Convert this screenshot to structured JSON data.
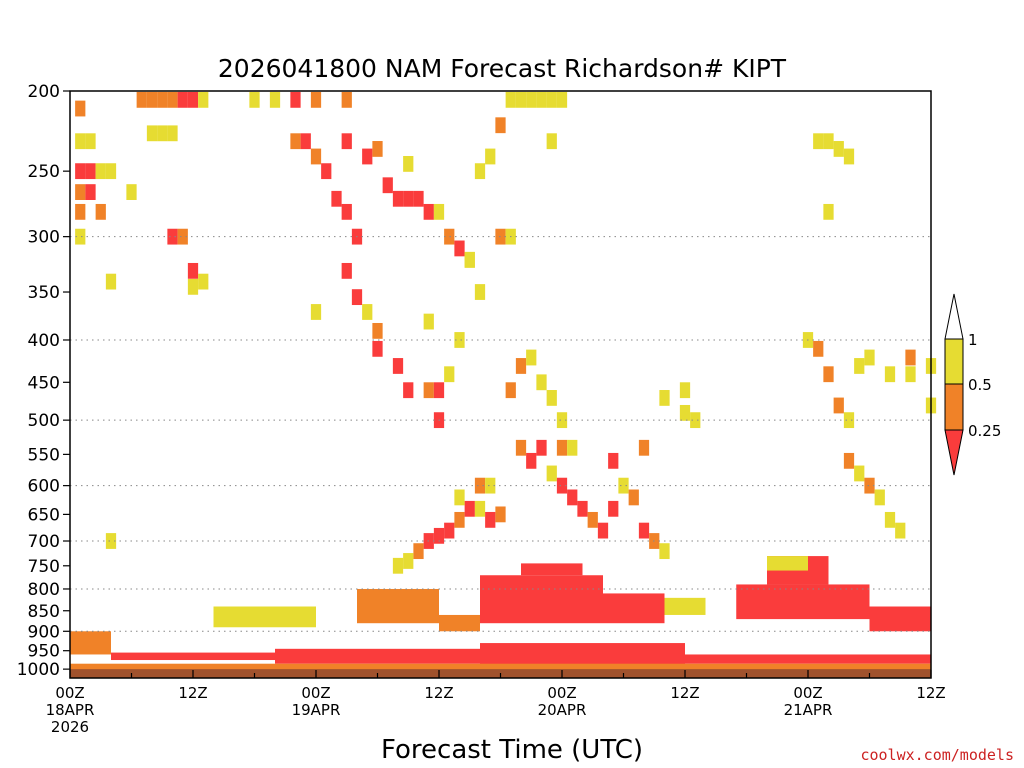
{
  "chart_data": {
    "type": "heatmap",
    "title": "2026041800 NAM Forecast Richardson# KIPT",
    "xlabel": "Forecast Time (UTC)",
    "ylabel": "",
    "y_scale": "log-pressure",
    "ylim": [
      1025,
      200
    ],
    "xlim_hours": [
      0,
      84
    ],
    "y_ticks": [
      "200",
      "250",
      "300",
      "350",
      "400",
      "450",
      "500",
      "550",
      "600",
      "650",
      "700",
      "750",
      "800",
      "850",
      "900",
      "950",
      "1000"
    ],
    "y_tick_values": [
      200,
      250,
      300,
      350,
      400,
      450,
      500,
      550,
      600,
      650,
      700,
      750,
      800,
      850,
      900,
      950,
      1000
    ],
    "grid_levels": [
      300,
      400,
      500,
      600,
      700,
      800,
      900
    ],
    "x_ticks": [
      {
        "hour": 0,
        "lines": [
          "00Z",
          "18APR",
          "2026"
        ]
      },
      {
        "hour": 12,
        "lines": [
          "12Z"
        ]
      },
      {
        "hour": 24,
        "lines": [
          "00Z",
          "19APR"
        ]
      },
      {
        "hour": 36,
        "lines": [
          "12Z"
        ]
      },
      {
        "hour": 48,
        "lines": [
          "00Z",
          "20APR"
        ]
      },
      {
        "hour": 60,
        "lines": [
          "12Z"
        ]
      },
      {
        "hour": 72,
        "lines": [
          "00Z",
          "21APR"
        ]
      },
      {
        "hour": 84,
        "lines": [
          "12Z"
        ]
      }
    ],
    "legend": {
      "placement": "right",
      "labels": [
        "1",
        "0.5",
        "0.25"
      ],
      "colors": [
        "#e6dc32",
        "#f08228",
        "#fa3c3c"
      ]
    },
    "colors": {
      "lt025": "#fa3c3c",
      "lt05": "#f08228",
      "lt1": "#e6dc32",
      "ground": "#a0522d"
    },
    "cells": [
      [
        1,
        210,
        "lt05"
      ],
      [
        1,
        230,
        "lt1"
      ],
      [
        2,
        230,
        "lt1"
      ],
      [
        2,
        250,
        "lt025"
      ],
      [
        1,
        250,
        "lt025"
      ],
      [
        1,
        265,
        "lt05"
      ],
      [
        2,
        265,
        "lt025"
      ],
      [
        3,
        250,
        "lt1"
      ],
      [
        4,
        250,
        "lt1"
      ],
      [
        3,
        280,
        "lt05"
      ],
      [
        1,
        280,
        "lt05"
      ],
      [
        1,
        300,
        "lt1"
      ],
      [
        4,
        340,
        "lt1"
      ],
      [
        6,
        265,
        "lt1"
      ],
      [
        4,
        700,
        "lt1"
      ],
      [
        7,
        205,
        "lt05"
      ],
      [
        8,
        205,
        "lt05"
      ],
      [
        9,
        205,
        "lt05"
      ],
      [
        10,
        205,
        "lt05"
      ],
      [
        11,
        205,
        "lt025"
      ],
      [
        12,
        205,
        "lt025"
      ],
      [
        13,
        205,
        "lt1"
      ],
      [
        8,
        225,
        "lt1"
      ],
      [
        9,
        225,
        "lt1"
      ],
      [
        10,
        225,
        "lt1"
      ],
      [
        10,
        300,
        "lt025"
      ],
      [
        11,
        300,
        "lt05"
      ],
      [
        12,
        330,
        "lt025"
      ],
      [
        13,
        340,
        "lt1"
      ],
      [
        12,
        345,
        "lt1"
      ],
      [
        18,
        205,
        "lt1"
      ],
      [
        20,
        205,
        "lt1"
      ],
      [
        22,
        205,
        "lt025"
      ],
      [
        24,
        205,
        "lt05"
      ],
      [
        27,
        205,
        "lt05"
      ],
      [
        22,
        230,
        "lt05"
      ],
      [
        23,
        230,
        "lt025"
      ],
      [
        24,
        240,
        "lt05"
      ],
      [
        25,
        250,
        "lt025"
      ],
      [
        26,
        270,
        "lt025"
      ],
      [
        27,
        280,
        "lt025"
      ],
      [
        28,
        300,
        "lt025"
      ],
      [
        27,
        230,
        "lt025"
      ],
      [
        29,
        240,
        "lt025"
      ],
      [
        30,
        235,
        "lt05"
      ],
      [
        31,
        260,
        "lt025"
      ],
      [
        32,
        270,
        "lt025"
      ],
      [
        33,
        270,
        "lt025"
      ],
      [
        34,
        270,
        "lt025"
      ],
      [
        35,
        280,
        "lt025"
      ],
      [
        33,
        245,
        "lt1"
      ],
      [
        36,
        280,
        "lt1"
      ],
      [
        37,
        300,
        "lt05"
      ],
      [
        38,
        310,
        "lt025"
      ],
      [
        39,
        320,
        "lt1"
      ],
      [
        24,
        370,
        "lt1"
      ],
      [
        27,
        330,
        "lt025"
      ],
      [
        28,
        355,
        "lt025"
      ],
      [
        29,
        370,
        "lt1"
      ],
      [
        30,
        390,
        "lt05"
      ],
      [
        30,
        410,
        "lt025"
      ],
      [
        32,
        430,
        "lt025"
      ],
      [
        33,
        460,
        "lt025"
      ],
      [
        35,
        460,
        "lt05"
      ],
      [
        36,
        460,
        "lt025"
      ],
      [
        37,
        440,
        "lt1"
      ],
      [
        38,
        400,
        "lt1"
      ],
      [
        35,
        380,
        "lt1"
      ],
      [
        36,
        500,
        "lt025"
      ],
      [
        39,
        320,
        "lt1"
      ],
      [
        40,
        350,
        "lt1"
      ],
      [
        42,
        300,
        "lt05"
      ],
      [
        43,
        300,
        "lt1"
      ],
      [
        45,
        205,
        "lt1"
      ],
      [
        46,
        205,
        "lt1"
      ],
      [
        47,
        205,
        "lt1"
      ],
      [
        48,
        205,
        "lt1"
      ],
      [
        44,
        205,
        "lt1"
      ],
      [
        43,
        205,
        "lt1"
      ],
      [
        42,
        220,
        "lt05"
      ],
      [
        41,
        240,
        "lt1"
      ],
      [
        40,
        250,
        "lt1"
      ],
      [
        47,
        230,
        "lt1"
      ],
      [
        44,
        430,
        "lt05"
      ],
      [
        45,
        420,
        "lt1"
      ],
      [
        46,
        450,
        "lt1"
      ],
      [
        47,
        470,
        "lt1"
      ],
      [
        48,
        500,
        "lt1"
      ],
      [
        43,
        460,
        "lt05"
      ],
      [
        44,
        540,
        "lt05"
      ],
      [
        45,
        560,
        "lt025"
      ],
      [
        46,
        540,
        "lt025"
      ],
      [
        47,
        580,
        "lt1"
      ],
      [
        48,
        540,
        "lt05"
      ],
      [
        49,
        540,
        "lt1"
      ],
      [
        48,
        600,
        "lt025"
      ],
      [
        49,
        620,
        "lt025"
      ],
      [
        50,
        640,
        "lt025"
      ],
      [
        51,
        660,
        "lt05"
      ],
      [
        52,
        680,
        "lt025"
      ],
      [
        53,
        640,
        "lt025"
      ],
      [
        54,
        600,
        "lt1"
      ],
      [
        55,
        620,
        "lt05"
      ],
      [
        56,
        680,
        "lt025"
      ],
      [
        57,
        700,
        "lt05"
      ],
      [
        58,
        720,
        "lt1"
      ],
      [
        53,
        560,
        "lt025"
      ],
      [
        56,
        540,
        "lt05"
      ],
      [
        35,
        700,
        "lt025"
      ],
      [
        36,
        690,
        "lt025"
      ],
      [
        37,
        680,
        "lt025"
      ],
      [
        38,
        660,
        "lt05"
      ],
      [
        39,
        640,
        "lt025"
      ],
      [
        40,
        640,
        "lt1"
      ],
      [
        41,
        660,
        "lt025"
      ],
      [
        42,
        650,
        "lt05"
      ],
      [
        34,
        720,
        "lt05"
      ],
      [
        33,
        740,
        "lt1"
      ],
      [
        32,
        750,
        "lt1"
      ],
      [
        40,
        600,
        "lt05"
      ],
      [
        41,
        600,
        "lt1"
      ],
      [
        38,
        620,
        "lt1"
      ],
      [
        72,
        400,
        "lt1"
      ],
      [
        73,
        410,
        "lt05"
      ],
      [
        74,
        440,
        "lt05"
      ],
      [
        75,
        480,
        "lt05"
      ],
      [
        76,
        500,
        "lt1"
      ],
      [
        76,
        560,
        "lt05"
      ],
      [
        77,
        580,
        "lt1"
      ],
      [
        78,
        600,
        "lt05"
      ],
      [
        79,
        620,
        "lt1"
      ],
      [
        80,
        660,
        "lt1"
      ],
      [
        81,
        680,
        "lt1"
      ],
      [
        77,
        430,
        "lt1"
      ],
      [
        78,
        420,
        "lt1"
      ],
      [
        80,
        440,
        "lt1"
      ],
      [
        82,
        440,
        "lt1"
      ],
      [
        84,
        430,
        "lt1"
      ],
      [
        82,
        420,
        "lt05"
      ],
      [
        84,
        480,
        "lt1"
      ],
      [
        73,
        230,
        "lt1"
      ],
      [
        74,
        230,
        "lt1"
      ],
      [
        75,
        235,
        "lt1"
      ],
      [
        76,
        240,
        "lt1"
      ],
      [
        74,
        280,
        "lt1"
      ],
      [
        58,
        470,
        "lt1"
      ],
      [
        60,
        490,
        "lt1"
      ],
      [
        61,
        500,
        "lt1"
      ],
      [
        60,
        460,
        "lt1"
      ]
    ],
    "bands": [
      {
        "h0": 0,
        "h1": 4,
        "p0": 960,
        "p1": 900,
        "cls": "lt05"
      },
      {
        "h0": 4,
        "h1": 20,
        "p0": 975,
        "p1": 955,
        "cls": "lt025"
      },
      {
        "h0": 20,
        "h1": 40,
        "p0": 985,
        "p1": 945,
        "cls": "lt025"
      },
      {
        "h0": 40,
        "h1": 60,
        "p0": 990,
        "p1": 930,
        "cls": "lt025"
      },
      {
        "h0": 60,
        "h1": 84,
        "p0": 985,
        "p1": 960,
        "cls": "lt025"
      },
      {
        "h0": 0,
        "h1": 84,
        "p0": 1000,
        "p1": 985,
        "cls": "lt05"
      },
      {
        "h0": 40,
        "h1": 52,
        "p0": 880,
        "p1": 770,
        "cls": "lt025"
      },
      {
        "h0": 44,
        "h1": 50,
        "p0": 770,
        "p1": 745,
        "cls": "lt025"
      },
      {
        "h0": 52,
        "h1": 58,
        "p0": 880,
        "p1": 810,
        "cls": "lt025"
      },
      {
        "h0": 65,
        "h1": 78,
        "p0": 870,
        "p1": 790,
        "cls": "lt025"
      },
      {
        "h0": 68,
        "h1": 74,
        "p0": 790,
        "p1": 730,
        "cls": "lt025"
      },
      {
        "h0": 78,
        "h1": 84,
        "p0": 900,
        "p1": 840,
        "cls": "lt025"
      },
      {
        "h0": 14,
        "h1": 24,
        "p0": 890,
        "p1": 840,
        "cls": "lt1"
      },
      {
        "h0": 28,
        "h1": 36,
        "p0": 880,
        "p1": 800,
        "cls": "lt05"
      },
      {
        "h0": 68,
        "h1": 72,
        "p0": 760,
        "p1": 730,
        "cls": "lt1"
      },
      {
        "h0": 58,
        "h1": 62,
        "p0": 860,
        "p1": 820,
        "cls": "lt1"
      },
      {
        "h0": 36,
        "h1": 40,
        "p0": 900,
        "p1": 860,
        "cls": "lt05"
      }
    ]
  },
  "credit": "coolwx.com/models"
}
